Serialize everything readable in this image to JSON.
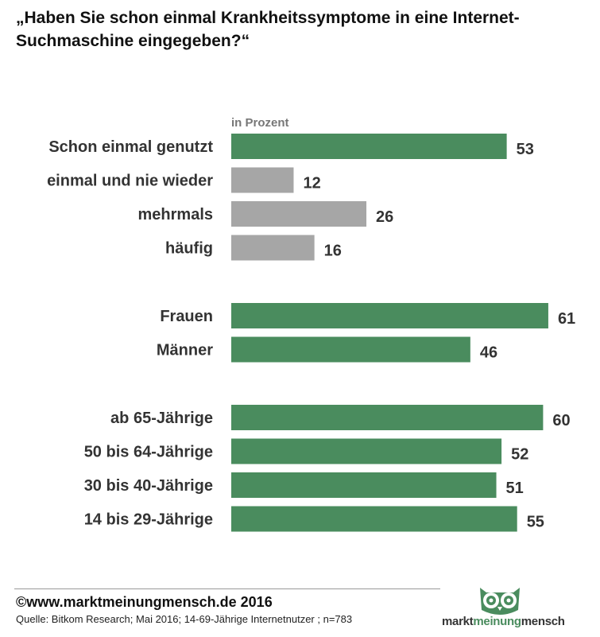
{
  "title": "„Haben Sie schon einmal Krankheitssymptome in eine Internet-Suchmaschine  eingegeben?“",
  "subtitle": "in Prozent",
  "colors": {
    "green": "#4a8c5e",
    "gray": "#a6a6a6"
  },
  "chart_data": {
    "type": "bar",
    "orientation": "horizontal",
    "unit": "in Prozent",
    "groups": [
      [
        {
          "label": "Schon einmal genutzt",
          "value": 53,
          "color": "green"
        },
        {
          "label": "einmal und nie wieder",
          "value": 12,
          "color": "gray"
        },
        {
          "label": "mehrmals",
          "value": 26,
          "color": "gray"
        },
        {
          "label": "häufig",
          "value": 16,
          "color": "gray"
        }
      ],
      [
        {
          "label": "Frauen",
          "value": 61,
          "color": "green"
        },
        {
          "label": "Männer",
          "value": 46,
          "color": "green"
        }
      ],
      [
        {
          "label": "ab 65-Jährige",
          "value": 60,
          "color": "green"
        },
        {
          "label": "50 bis 64-Jährige",
          "value": 52,
          "color": "green"
        },
        {
          "label": "30 bis 40-Jährige",
          "value": 51,
          "color": "green"
        },
        {
          "label": "14 bis 29-Jährige",
          "value": 55,
          "color": "green"
        }
      ]
    ]
  },
  "footer": {
    "copyright": "©www.marktmeinungmensch.de 2016",
    "source": "Quelle: Bitkom Research; Mai 2016; 14-69-Jährige Internetnutzer ; n=783"
  },
  "logo": {
    "part1": "markt",
    "part2": "meinung",
    "part3": "mensch"
  }
}
